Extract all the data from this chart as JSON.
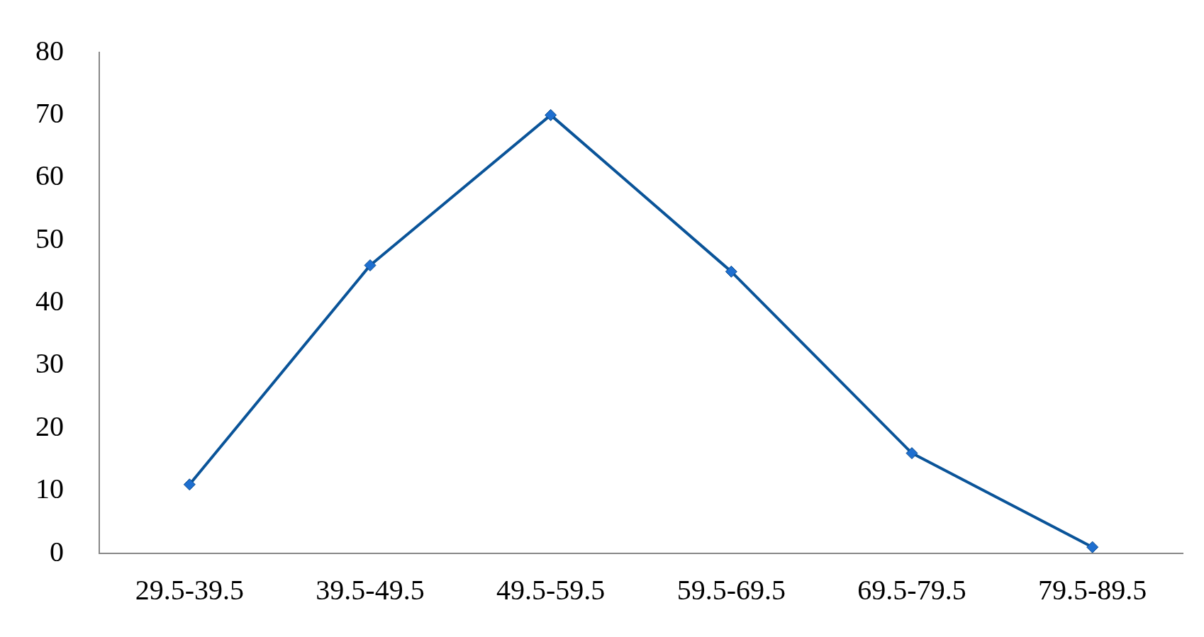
{
  "chart_data": {
    "type": "line",
    "categories": [
      "29.5-39.5",
      "39.5-49.5",
      "49.5-59.5",
      "59.5-69.5",
      "69.5-79.5",
      "79.5-89.5"
    ],
    "series": [
      {
        "color": "#0a5499",
        "values": [
          11,
          46,
          70,
          45,
          16,
          1
        ]
      }
    ],
    "ylim": [
      0,
      80
    ],
    "yticks": [
      0,
      10,
      20,
      30,
      40,
      50,
      60,
      70,
      80
    ],
    "grid": false,
    "legend": false,
    "marker": "diamond",
    "line_style": "solid"
  }
}
